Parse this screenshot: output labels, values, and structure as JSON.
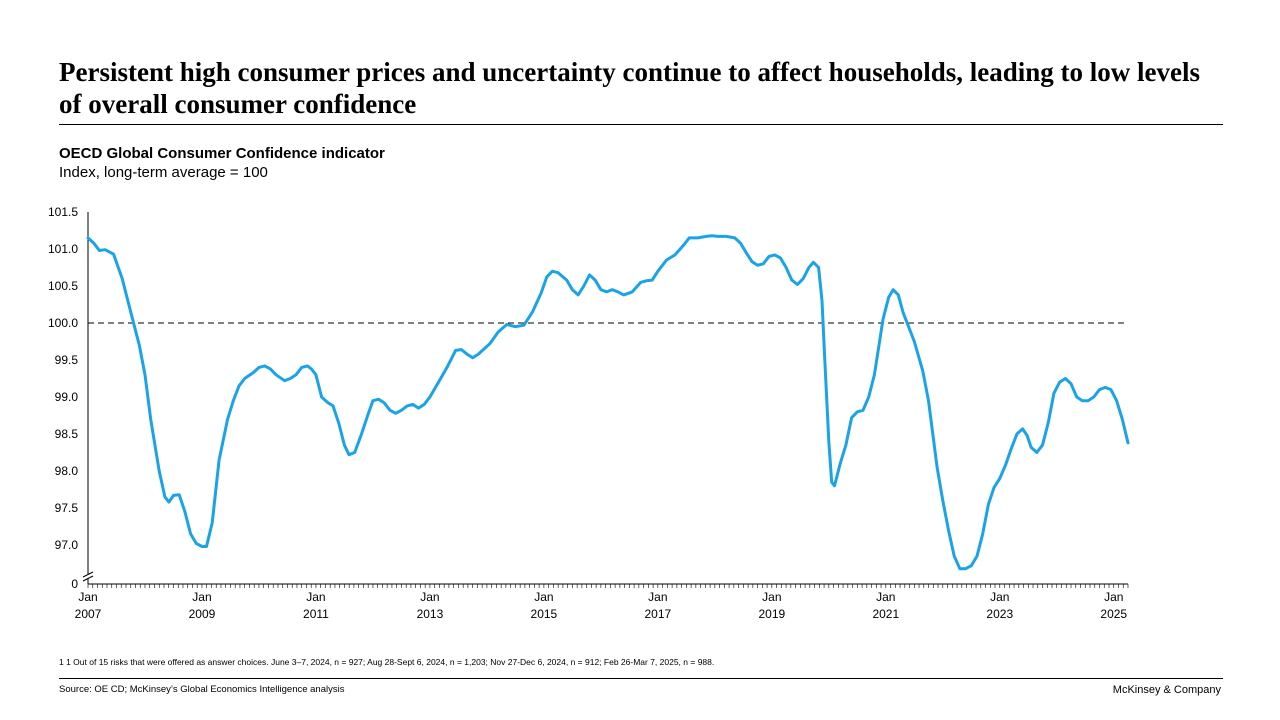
{
  "headline": "Persistent high consumer prices and uncertainty continue to affect households, leading to low levels of overall consumer confidence",
  "footnote": "1 1 Out of 15 risks that were offered as answer choices. June 3–7, 2024, n = 927; Aug 28-Sept 6, 2024, n = 1,203; Nov 27-Dec 6, 2024, n = 912; Feb 26-Mar 7, 2025, n = 988.",
  "source": "Source: OE CD; McKinsey’s Global Economics Intelligence analysis",
  "brand": "McKinsey & Company",
  "colors": {
    "line": "#1aa3e8",
    "reference": "#000000"
  },
  "chart_data": {
    "type": "line",
    "title": "OECD Global Consumer Confidence indicator",
    "subtitle": "Index, long-term average = 100",
    "xlabel": "",
    "ylabel": "",
    "ylim": [
      96.5,
      101.5
    ],
    "y_ticks": [
      "101.5",
      "101.0",
      "100.5",
      "100.0",
      "99.5",
      "99.0",
      "98.5",
      "98.0",
      "97.5",
      "97.0"
    ],
    "y_tick_values": [
      101.5,
      101.0,
      100.5,
      100.0,
      99.5,
      99.0,
      98.5,
      98.0,
      97.5,
      97.0
    ],
    "y_zero_label": "0",
    "axis_break": true,
    "reference_line": 100.0,
    "x_range": [
      2007.0,
      2025.25
    ],
    "x_ticks": [
      {
        "x": 2007,
        "month": "Jan",
        "year": "2007"
      },
      {
        "x": 2009,
        "month": "Jan",
        "year": "2009"
      },
      {
        "x": 2011,
        "month": "Jan",
        "year": "2011"
      },
      {
        "x": 2013,
        "month": "Jan",
        "year": "2013"
      },
      {
        "x": 2015,
        "month": "Jan",
        "year": "2015"
      },
      {
        "x": 2017,
        "month": "Jan",
        "year": "2017"
      },
      {
        "x": 2019,
        "month": "Jan",
        "year": "2019"
      },
      {
        "x": 2021,
        "month": "Jan",
        "year": "2021"
      },
      {
        "x": 2023,
        "month": "Jan",
        "year": "2023"
      },
      {
        "x": 2025,
        "month": "Jan",
        "year": "2025"
      }
    ],
    "series": [
      {
        "name": "OECD Global Consumer Confidence indicator",
        "points": [
          [
            2007.0,
            101.15
          ],
          [
            2007.1,
            101.08
          ],
          [
            2007.2,
            100.98
          ],
          [
            2007.3,
            100.99
          ],
          [
            2007.45,
            100.93
          ],
          [
            2007.6,
            100.6
          ],
          [
            2007.75,
            100.15
          ],
          [
            2007.9,
            99.7
          ],
          [
            2008.0,
            99.3
          ],
          [
            2008.1,
            98.7
          ],
          [
            2008.25,
            98.0
          ],
          [
            2008.35,
            97.65
          ],
          [
            2008.42,
            97.58
          ],
          [
            2008.5,
            97.67
          ],
          [
            2008.6,
            97.68
          ],
          [
            2008.7,
            97.45
          ],
          [
            2008.8,
            97.15
          ],
          [
            2008.9,
            97.02
          ],
          [
            2009.0,
            96.98
          ],
          [
            2009.08,
            96.98
          ],
          [
            2009.18,
            97.3
          ],
          [
            2009.3,
            98.15
          ],
          [
            2009.45,
            98.7
          ],
          [
            2009.55,
            98.95
          ],
          [
            2009.65,
            99.15
          ],
          [
            2009.75,
            99.25
          ],
          [
            2009.9,
            99.33
          ],
          [
            2010.0,
            99.4
          ],
          [
            2010.1,
            99.42
          ],
          [
            2010.2,
            99.38
          ],
          [
            2010.3,
            99.3
          ],
          [
            2010.45,
            99.22
          ],
          [
            2010.55,
            99.25
          ],
          [
            2010.65,
            99.3
          ],
          [
            2010.75,
            99.4
          ],
          [
            2010.85,
            99.42
          ],
          [
            2010.92,
            99.38
          ],
          [
            2011.0,
            99.3
          ],
          [
            2011.1,
            99.0
          ],
          [
            2011.2,
            98.93
          ],
          [
            2011.3,
            98.88
          ],
          [
            2011.4,
            98.65
          ],
          [
            2011.5,
            98.35
          ],
          [
            2011.58,
            98.22
          ],
          [
            2011.68,
            98.25
          ],
          [
            2011.8,
            98.5
          ],
          [
            2011.92,
            98.78
          ],
          [
            2012.0,
            98.95
          ],
          [
            2012.1,
            98.97
          ],
          [
            2012.2,
            98.92
          ],
          [
            2012.3,
            98.82
          ],
          [
            2012.4,
            98.78
          ],
          [
            2012.5,
            98.82
          ],
          [
            2012.6,
            98.88
          ],
          [
            2012.7,
            98.9
          ],
          [
            2012.8,
            98.85
          ],
          [
            2012.9,
            98.9
          ],
          [
            2013.0,
            99.0
          ],
          [
            2013.15,
            99.2
          ],
          [
            2013.3,
            99.4
          ],
          [
            2013.45,
            99.63
          ],
          [
            2013.55,
            99.64
          ],
          [
            2013.65,
            99.58
          ],
          [
            2013.75,
            99.53
          ],
          [
            2013.85,
            99.58
          ],
          [
            2013.95,
            99.65
          ],
          [
            2014.05,
            99.72
          ],
          [
            2014.2,
            99.88
          ],
          [
            2014.35,
            99.98
          ],
          [
            2014.5,
            99.95
          ],
          [
            2014.65,
            99.97
          ],
          [
            2014.8,
            100.15
          ],
          [
            2014.95,
            100.4
          ],
          [
            2015.05,
            100.62
          ],
          [
            2015.15,
            100.7
          ],
          [
            2015.25,
            100.68
          ],
          [
            2015.4,
            100.58
          ],
          [
            2015.5,
            100.45
          ],
          [
            2015.6,
            100.38
          ],
          [
            2015.7,
            100.5
          ],
          [
            2015.8,
            100.65
          ],
          [
            2015.9,
            100.58
          ],
          [
            2016.0,
            100.45
          ],
          [
            2016.1,
            100.42
          ],
          [
            2016.2,
            100.45
          ],
          [
            2016.3,
            100.42
          ],
          [
            2016.4,
            100.38
          ],
          [
            2016.55,
            100.42
          ],
          [
            2016.7,
            100.55
          ],
          [
            2016.8,
            100.57
          ],
          [
            2016.9,
            100.58
          ],
          [
            2017.0,
            100.7
          ],
          [
            2017.15,
            100.85
          ],
          [
            2017.3,
            100.92
          ],
          [
            2017.45,
            101.05
          ],
          [
            2017.55,
            101.15
          ],
          [
            2017.7,
            101.15
          ],
          [
            2017.85,
            101.17
          ],
          [
            2017.95,
            101.18
          ],
          [
            2018.05,
            101.17
          ],
          [
            2018.2,
            101.17
          ],
          [
            2018.35,
            101.15
          ],
          [
            2018.45,
            101.08
          ],
          [
            2018.55,
            100.95
          ],
          [
            2018.65,
            100.83
          ],
          [
            2018.75,
            100.78
          ],
          [
            2018.85,
            100.8
          ],
          [
            2018.95,
            100.9
          ],
          [
            2019.05,
            100.92
          ],
          [
            2019.15,
            100.88
          ],
          [
            2019.25,
            100.75
          ],
          [
            2019.35,
            100.58
          ],
          [
            2019.45,
            100.52
          ],
          [
            2019.55,
            100.6
          ],
          [
            2019.65,
            100.75
          ],
          [
            2019.73,
            100.82
          ],
          [
            2019.82,
            100.75
          ],
          [
            2019.88,
            100.3
          ],
          [
            2019.93,
            99.5
          ],
          [
            2020.0,
            98.4
          ],
          [
            2020.05,
            97.85
          ],
          [
            2020.1,
            97.8
          ],
          [
            2020.2,
            98.1
          ],
          [
            2020.3,
            98.35
          ],
          [
            2020.4,
            98.72
          ],
          [
            2020.5,
            98.8
          ],
          [
            2020.6,
            98.82
          ],
          [
            2020.7,
            99.0
          ],
          [
            2020.8,
            99.3
          ],
          [
            2020.88,
            99.7
          ],
          [
            2020.95,
            100.05
          ],
          [
            2021.05,
            100.35
          ],
          [
            2021.13,
            100.45
          ],
          [
            2021.22,
            100.38
          ],
          [
            2021.3,
            100.15
          ],
          [
            2021.4,
            99.95
          ],
          [
            2021.5,
            99.75
          ],
          [
            2021.65,
            99.35
          ],
          [
            2021.75,
            98.95
          ],
          [
            2021.9,
            98.05
          ],
          [
            2022.0,
            97.6
          ],
          [
            2022.1,
            97.2
          ],
          [
            2022.2,
            96.85
          ],
          [
            2022.3,
            96.68
          ],
          [
            2022.4,
            96.68
          ],
          [
            2022.5,
            96.72
          ],
          [
            2022.6,
            96.85
          ],
          [
            2022.7,
            97.15
          ],
          [
            2022.8,
            97.55
          ],
          [
            2022.9,
            97.78
          ],
          [
            2023.0,
            97.9
          ],
          [
            2023.1,
            98.08
          ],
          [
            2023.2,
            98.3
          ],
          [
            2023.3,
            98.5
          ],
          [
            2023.4,
            98.57
          ],
          [
            2023.48,
            98.48
          ],
          [
            2023.55,
            98.32
          ],
          [
            2023.65,
            98.25
          ],
          [
            2023.75,
            98.35
          ],
          [
            2023.85,
            98.65
          ],
          [
            2023.95,
            99.05
          ],
          [
            2024.05,
            99.2
          ],
          [
            2024.15,
            99.25
          ],
          [
            2024.25,
            99.18
          ],
          [
            2024.35,
            99.0
          ],
          [
            2024.45,
            98.95
          ],
          [
            2024.55,
            98.95
          ],
          [
            2024.65,
            99.0
          ],
          [
            2024.75,
            99.1
          ],
          [
            2024.85,
            99.13
          ],
          [
            2024.95,
            99.1
          ],
          [
            2025.05,
            98.95
          ],
          [
            2025.15,
            98.7
          ],
          [
            2025.25,
            98.38
          ]
        ]
      }
    ]
  }
}
